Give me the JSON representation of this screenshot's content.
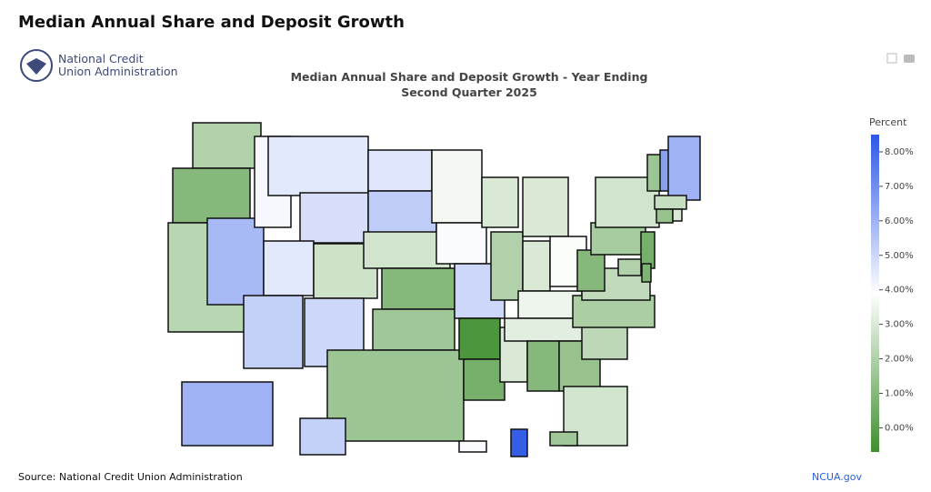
{
  "header": {
    "title": "Median Annual Share and Deposit Growth",
    "logo_text": [
      "National Credit",
      "Union Administration"
    ]
  },
  "chart_data": {
    "type": "choropleth",
    "title": "Median Annual Share and Deposit Growth - Year Ending Second Quarter 2025",
    "values": [
      2.0,
      1.0,
      2.2,
      5.8,
      4.1,
      4.5,
      4.8,
      4.5,
      5.2,
      2.7,
      5.0,
      4.6,
      5.3,
      2.8,
      1.0,
      1.6,
      1.5,
      3.6,
      4.0,
      5.0,
      -0.4,
      0.6,
      3.0,
      2.0,
      3.0,
      3.0,
      3.0,
      3.5,
      3.2,
      1.0,
      3.8,
      1.4,
      2.8,
      2.3,
      1.9,
      2.4,
      1.0,
      1.8,
      2.8,
      1.5,
      6.5,
      6.0,
      2.5,
      1.4,
      3.0,
      0.6,
      0.8,
      2.0,
      6.0,
      5.2,
      4.0,
      8.3,
      1.6
    ],
    "colorscale": [
      "#3f8f2f",
      "#ffffff",
      "#2c57e6"
    ],
    "colorbar_title": "Percent",
    "zlim": [
      -0.7,
      8.5
    ],
    "zticks": [
      {
        "value": 0,
        "label": "0.00%"
      },
      {
        "value": 1,
        "label": "1.00%"
      },
      {
        "value": 2,
        "label": "2.00%"
      },
      {
        "value": 3,
        "label": "3.00%"
      },
      {
        "value": 4,
        "label": "4.00%"
      },
      {
        "value": 5,
        "label": "5.00%"
      },
      {
        "value": 6,
        "label": "6.00%"
      },
      {
        "value": 7,
        "label": "7.00%"
      },
      {
        "value": 8,
        "label": "8.00%"
      }
    ]
  },
  "footer": {
    "source": "Source: National Credit Union Administration",
    "link": "NCUA.gov"
  }
}
